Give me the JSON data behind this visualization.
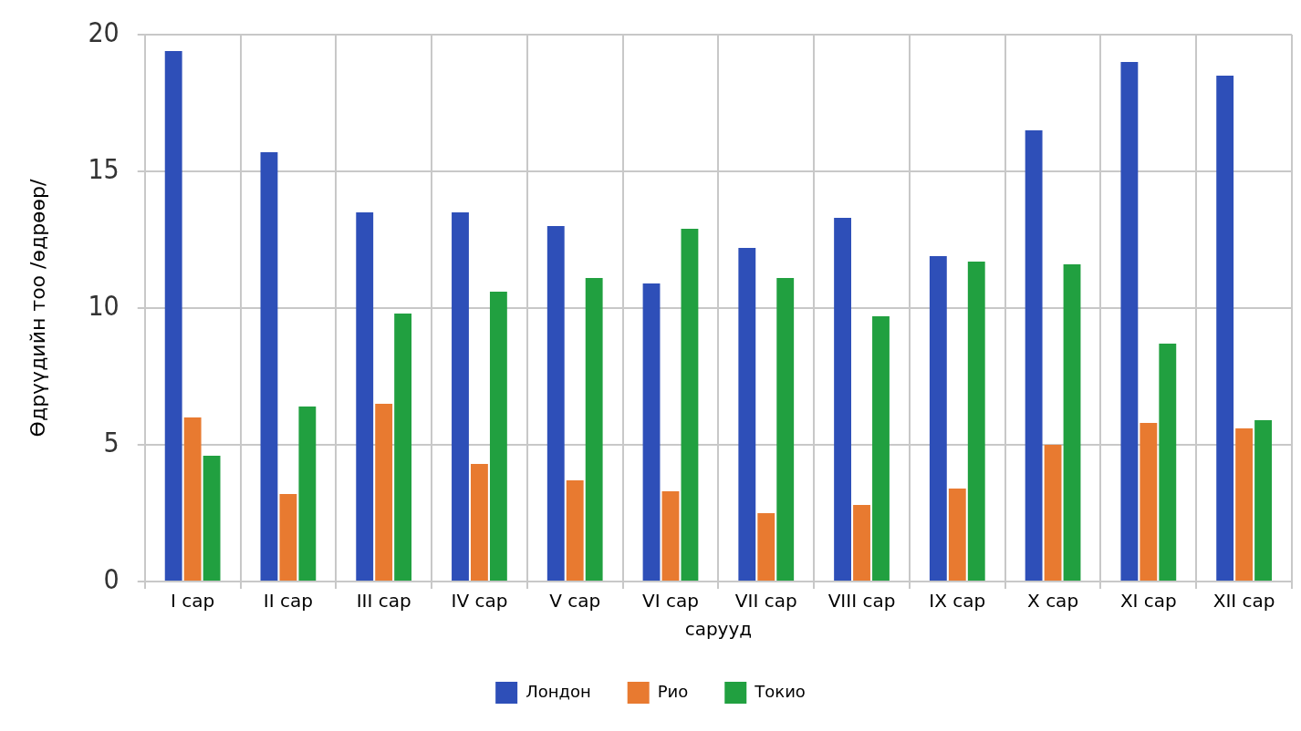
{
  "chart_data": {
    "type": "bar",
    "xlabel": "сарууд",
    "ylabel": "Өдрүүдийн тоо /өдрөөр/",
    "categories": [
      "I сар",
      "II сар",
      "III сар",
      "IV сар",
      "V сар",
      "VI сар",
      "VII сар",
      "VIII сар",
      "IX сар",
      "X сар",
      "XI сар",
      "XII сар"
    ],
    "series": [
      {
        "name": "Лондон",
        "color": "#2e4fb8",
        "values": [
          19.4,
          15.7,
          13.5,
          13.5,
          13.0,
          10.9,
          12.2,
          13.3,
          11.9,
          16.5,
          19.0,
          18.5
        ]
      },
      {
        "name": "Рио",
        "color": "#e87a30",
        "values": [
          6.0,
          3.2,
          6.5,
          4.3,
          3.7,
          3.3,
          2.5,
          2.8,
          3.4,
          5.0,
          5.8,
          5.6
        ]
      },
      {
        "name": "Токио",
        "color": "#21a040",
        "values": [
          4.6,
          6.4,
          9.8,
          10.6,
          11.1,
          12.9,
          11.1,
          9.7,
          11.7,
          11.6,
          8.7,
          5.9
        ]
      }
    ],
    "ylim": [
      0,
      20
    ],
    "yticks": [
      0,
      5,
      10,
      15,
      20
    ],
    "grid": true,
    "legend": "bottom"
  }
}
